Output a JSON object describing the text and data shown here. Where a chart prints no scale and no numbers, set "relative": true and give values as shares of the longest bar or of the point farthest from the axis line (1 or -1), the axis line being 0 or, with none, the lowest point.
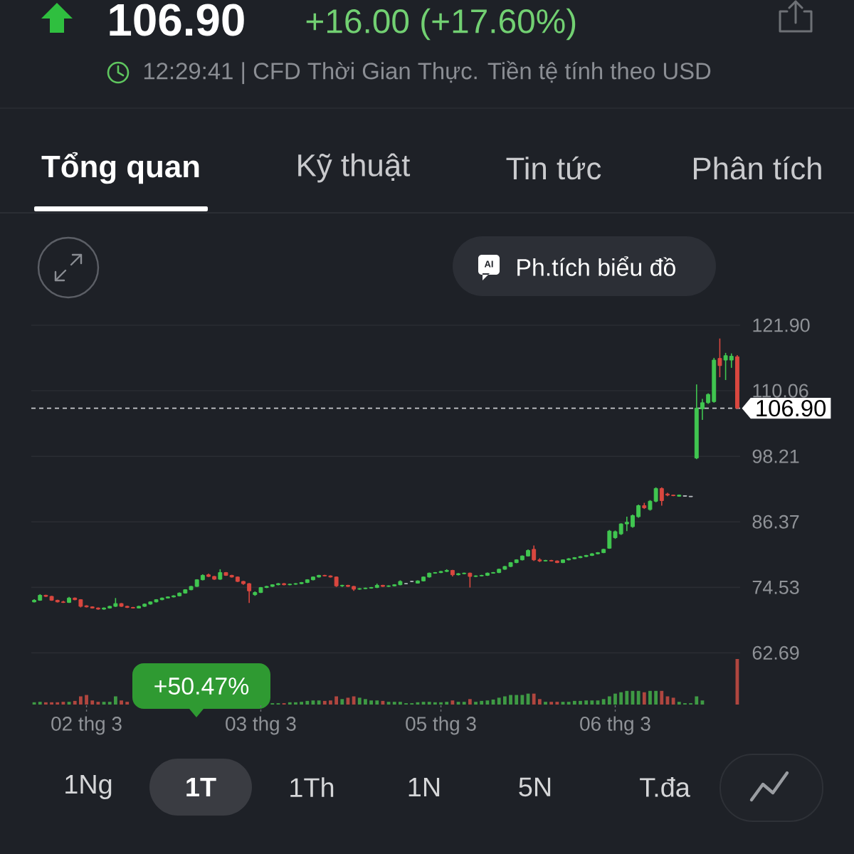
{
  "chart_data": [
    {
      "type": "other",
      "title": "106.90",
      "subtitle": "+16.00 (+17.60%)",
      "annotations": [
        "12:29:41 | CFD Thời Gian Thực. Tiền tệ tính theo USD",
        "Tổng quan",
        "Kỹ thuật",
        "Tin tức",
        "Phân tích",
        "AI",
        "Ph.tích biểu đồ",
        "+50.47%",
        "1Ng",
        "1T",
        "1Th",
        "1N",
        "5N",
        "T.đa"
      ]
    },
    {
      "type": "candlestick",
      "categories": [
        null,
        null,
        null,
        null,
        null,
        null,
        null,
        null,
        null,
        null,
        null,
        null,
        null,
        null,
        null,
        null,
        null,
        null,
        null,
        null,
        null,
        null,
        null,
        null,
        null,
        null,
        null,
        null,
        null,
        null,
        null,
        null,
        null,
        null,
        null,
        null,
        null,
        null,
        null,
        null,
        null,
        null,
        null,
        null,
        null,
        null,
        null,
        null,
        null,
        null,
        null,
        null,
        null,
        null,
        null,
        null,
        null,
        null,
        null,
        null,
        null,
        null,
        null,
        null,
        null,
        null,
        null,
        null,
        null,
        null,
        null,
        null,
        null,
        null,
        null,
        null,
        null,
        null,
        null,
        null,
        null,
        null,
        null,
        null,
        null,
        null,
        null,
        null,
        null,
        null,
        null,
        null,
        null,
        null,
        null,
        null,
        null,
        null,
        null,
        null,
        null,
        null,
        null,
        null,
        null,
        null,
        null,
        null,
        null,
        null,
        null,
        null,
        null,
        null,
        null,
        null,
        null,
        null,
        null,
        null,
        null,
        null
      ],
      "ohlc": [
        [
          71.9,
          72.4,
          71.8,
          72.2
        ],
        [
          72.2,
          73.3,
          72.1,
          73.1
        ],
        [
          73.1,
          73.2,
          72.8,
          72.9
        ],
        [
          72.9,
          73.0,
          72.1,
          72.2
        ],
        [
          72.2,
          72.3,
          71.8,
          71.9
        ],
        [
          71.9,
          72.1,
          71.7,
          71.8
        ],
        [
          71.8,
          72.8,
          71.7,
          72.6
        ],
        [
          72.6,
          72.7,
          72.2,
          72.3
        ],
        [
          72.3,
          72.4,
          70.9,
          71.1
        ],
        [
          71.2,
          71.3,
          70.9,
          71.0
        ],
        [
          71.0,
          71.1,
          70.7,
          70.8
        ],
        [
          70.8,
          70.9,
          70.5,
          70.6
        ],
        [
          70.6,
          70.9,
          70.5,
          70.8
        ],
        [
          70.8,
          71.2,
          70.7,
          71.1
        ],
        [
          71.1,
          72.6,
          71.0,
          71.6
        ],
        [
          71.6,
          71.7,
          71.0,
          71.1
        ],
        [
          71.1,
          71.2,
          70.8,
          70.9
        ],
        [
          70.9,
          71.0,
          70.7,
          70.8
        ],
        [
          70.8,
          71.2,
          70.7,
          71.1
        ],
        [
          71.1,
          71.6,
          71.0,
          71.5
        ],
        [
          71.5,
          72.0,
          71.4,
          71.9
        ],
        [
          71.9,
          72.4,
          71.8,
          72.3
        ],
        [
          72.3,
          72.7,
          72.2,
          72.6
        ],
        [
          72.6,
          72.9,
          72.5,
          72.8
        ],
        [
          72.8,
          73.1,
          72.7,
          73.0
        ],
        [
          73.0,
          73.6,
          72.9,
          73.5
        ],
        [
          73.5,
          74.2,
          73.4,
          74.1
        ],
        [
          74.1,
          74.8,
          74.0,
          74.7
        ],
        [
          74.7,
          76.0,
          74.6,
          75.9
        ],
        [
          75.9,
          76.9,
          75.8,
          76.7
        ],
        [
          76.8,
          77.0,
          76.4,
          76.5
        ],
        [
          76.5,
          76.6,
          75.9,
          76.0
        ],
        [
          76.0,
          77.8,
          75.9,
          77.2
        ],
        [
          77.2,
          77.3,
          76.6,
          76.7
        ],
        [
          76.7,
          76.8,
          76.3,
          76.4
        ],
        [
          76.4,
          76.5,
          75.5,
          75.6
        ],
        [
          75.6,
          75.7,
          75.0,
          75.2
        ],
        [
          75.2,
          75.3,
          71.7,
          73.9
        ],
        [
          73.2,
          73.8,
          73.0,
          73.6
        ],
        [
          73.6,
          74.6,
          73.5,
          74.5
        ],
        [
          74.5,
          74.8,
          74.4,
          74.7
        ],
        [
          74.7,
          75.1,
          74.6,
          75.0
        ],
        [
          75.0,
          75.3,
          74.9,
          75.2
        ],
        [
          75.2,
          75.3,
          74.9,
          75.0
        ],
        [
          75.0,
          75.2,
          74.9,
          75.1
        ],
        [
          75.1,
          75.3,
          75.0,
          75.2
        ],
        [
          75.2,
          75.5,
          75.1,
          75.4
        ],
        [
          75.4,
          76.0,
          75.3,
          75.9
        ],
        [
          75.9,
          76.5,
          75.8,
          76.4
        ],
        [
          76.4,
          76.8,
          76.3,
          76.7
        ],
        [
          76.7,
          76.8,
          76.5,
          76.6
        ],
        [
          76.6,
          76.7,
          76.3,
          76.4
        ],
        [
          76.4,
          76.5,
          74.6,
          74.8
        ],
        [
          74.8,
          75.0,
          74.6,
          74.9
        ],
        [
          74.9,
          75.0,
          74.6,
          74.7
        ],
        [
          74.7,
          74.8,
          73.9,
          74.2
        ],
        [
          74.2,
          74.4,
          74.1,
          74.3
        ],
        [
          74.3,
          74.5,
          74.2,
          74.4
        ],
        [
          74.4,
          74.6,
          74.3,
          74.5
        ],
        [
          74.5,
          75.2,
          74.4,
          74.9
        ],
        [
          74.9,
          75.0,
          74.6,
          74.7
        ],
        [
          74.7,
          74.9,
          74.6,
          74.8
        ],
        [
          74.8,
          75.1,
          74.7,
          75.0
        ],
        [
          75.0,
          75.8,
          74.9,
          75.6
        ],
        [
          75.2,
          75.3,
          75.1,
          75.2
        ],
        [
          75.6,
          75.7,
          75.5,
          75.6
        ],
        [
          75.3,
          75.8,
          75.2,
          75.7
        ],
        [
          75.7,
          76.5,
          75.6,
          76.4
        ],
        [
          76.4,
          77.2,
          76.3,
          77.1
        ],
        [
          77.1,
          77.3,
          77.0,
          77.2
        ],
        [
          77.2,
          77.5,
          77.1,
          77.4
        ],
        [
          77.4,
          77.8,
          77.3,
          77.6
        ],
        [
          77.6,
          77.7,
          76.5,
          76.8
        ],
        [
          76.8,
          77.1,
          76.7,
          77.0
        ],
        [
          77.0,
          77.2,
          76.9,
          77.1
        ],
        [
          77.1,
          77.2,
          74.5,
          76.5
        ],
        [
          76.5,
          76.7,
          76.4,
          76.6
        ],
        [
          76.6,
          76.8,
          76.5,
          76.7
        ],
        [
          76.7,
          77.2,
          76.6,
          77.1
        ],
        [
          77.1,
          77.3,
          77.0,
          77.2
        ],
        [
          77.2,
          77.9,
          77.1,
          77.8
        ],
        [
          77.8,
          78.4,
          77.7,
          78.3
        ],
        [
          78.3,
          79.1,
          78.2,
          79.0
        ],
        [
          79.0,
          79.6,
          78.9,
          79.5
        ],
        [
          79.5,
          80.3,
          79.4,
          80.2
        ],
        [
          80.2,
          81.4,
          80.1,
          81.2
        ],
        [
          81.4,
          82.1,
          79.3,
          79.5
        ],
        [
          79.5,
          79.8,
          79.1,
          79.3
        ],
        [
          79.3,
          79.5,
          79.2,
          79.4
        ],
        [
          79.4,
          79.5,
          79.2,
          79.3
        ],
        [
          79.3,
          79.4,
          78.9,
          79.0
        ],
        [
          79.0,
          79.6,
          78.9,
          79.5
        ],
        [
          79.5,
          79.8,
          79.4,
          79.7
        ],
        [
          79.7,
          80.0,
          79.6,
          79.9
        ],
        [
          79.9,
          80.2,
          79.8,
          80.1
        ],
        [
          80.1,
          80.4,
          80.0,
          80.3
        ],
        [
          80.3,
          80.7,
          80.2,
          80.6
        ],
        [
          80.6,
          80.9,
          80.5,
          80.8
        ],
        [
          80.8,
          81.5,
          80.7,
          81.4
        ],
        [
          81.6,
          84.9,
          81.5,
          84.7
        ],
        [
          83.5,
          84.8,
          83.3,
          84.6
        ],
        [
          84.2,
          86.1,
          84.0,
          86.0
        ],
        [
          86.0,
          87.3,
          84.7,
          86.3
        ],
        [
          85.5,
          87.7,
          85.3,
          87.5
        ],
        [
          87.3,
          89.5,
          87.1,
          89.3
        ],
        [
          89.3,
          89.8,
          88.7,
          88.9
        ],
        [
          88.6,
          90.3,
          88.4,
          90.1
        ],
        [
          90.1,
          92.6,
          89.9,
          92.4
        ],
        [
          92.4,
          92.6,
          89.3,
          90.2
        ],
        [
          91.4,
          91.6,
          91.0,
          91.2
        ],
        [
          91.2,
          91.3,
          91.0,
          91.1
        ],
        [
          91.0,
          91.3,
          90.9,
          91.2
        ],
        [
          91.1,
          91.1,
          91.0,
          91.0
        ],
        [
          91.0,
          91.0,
          90.9,
          90.9
        ],
        [
          97.9,
          111.2,
          97.7,
          106.9
        ],
        [
          106.8,
          108.6,
          104.8,
          107.9
        ],
        [
          107.9,
          109.6,
          107.7,
          109.4
        ],
        [
          108.1,
          116.0,
          107.9,
          115.6
        ],
        [
          115.9,
          119.5,
          112.5,
          114.6
        ],
        [
          115.6,
          116.9,
          112.0,
          116.4
        ],
        [
          115.6,
          116.8,
          114.2,
          116.3
        ],
        [
          116.2,
          116.5,
          106.9,
          106.9
        ]
      ],
      "colors": [
        "#40c650",
        "#40c650",
        "#d9473f",
        "#d9473f",
        "#d9473f",
        "#d9473f",
        "#40c650",
        "#d9473f",
        "#d9473f",
        "#d9473f",
        "#d9473f",
        "#d9473f",
        "#40c650",
        "#40c650",
        "#40c650",
        "#d9473f",
        "#d9473f",
        "#d9473f",
        "#40c650",
        "#40c650",
        "#40c650",
        "#40c650",
        "#40c650",
        "#40c650",
        "#40c650",
        "#40c650",
        "#40c650",
        "#40c650",
        "#40c650",
        "#40c650",
        "#d9473f",
        "#d9473f",
        "#40c650",
        "#d9473f",
        "#d9473f",
        "#d9473f",
        "#d9473f",
        "#d9473f",
        "#40c650",
        "#40c650",
        "#40c650",
        "#40c650",
        "#40c650",
        "#d9473f",
        "#40c650",
        "#40c650",
        "#40c650",
        "#40c650",
        "#40c650",
        "#40c650",
        "#d9473f",
        "#d9473f",
        "#d9473f",
        "#40c650",
        "#d9473f",
        "#d9473f",
        "#40c650",
        "#40c650",
        "#40c650",
        "#40c650",
        "#d9473f",
        "#40c650",
        "#40c650",
        "#40c650",
        "#b9bdc2",
        "#b9bdc2",
        "#40c650",
        "#40c650",
        "#40c650",
        "#40c650",
        "#40c650",
        "#40c650",
        "#d9473f",
        "#40c650",
        "#40c650",
        "#d9473f",
        "#40c650",
        "#40c650",
        "#40c650",
        "#40c650",
        "#40c650",
        "#40c650",
        "#40c650",
        "#40c650",
        "#40c650",
        "#40c650",
        "#d9473f",
        "#d9473f",
        "#40c650",
        "#d9473f",
        "#d9473f",
        "#40c650",
        "#40c650",
        "#40c650",
        "#40c650",
        "#40c650",
        "#40c650",
        "#40c650",
        "#40c650",
        "#40c650",
        "#40c650",
        "#40c650",
        "#40c650",
        "#40c650",
        "#40c650",
        "#d9473f",
        "#40c650",
        "#40c650",
        "#d9473f",
        "#d9473f",
        "#d9473f",
        "#40c650",
        "#b9bdc2",
        "#b9bdc2",
        "#40c650",
        "#40c650",
        "#40c650",
        "#40c650",
        "#d9473f",
        "#40c650",
        "#40c650",
        "#d9473f"
      ],
      "ylim": [
        62.69,
        121.9
      ],
      "yticks": [
        62.69,
        74.53,
        86.37,
        98.21,
        110.06,
        {
          "value": 121.9,
          "label": "121.90"
        }
      ],
      "grid": "y",
      "ref_lines": [
        {
          "axis": "y",
          "value": 106.9,
          "label": "106.90",
          "color": "#c8cacd",
          "line_style": "dashed"
        }
      ],
      "tick_labels": "y"
    },
    {
      "type": "bar",
      "categories": [
        null,
        null,
        null,
        null,
        null,
        null,
        null,
        null,
        null,
        "02 thg 3",
        null,
        null,
        null,
        null,
        null,
        null,
        null,
        null,
        null,
        null,
        null,
        null,
        null,
        null,
        null,
        null,
        null,
        null,
        null,
        null,
        null,
        null,
        null,
        null,
        null,
        null,
        null,
        null,
        null,
        "03 thg 3",
        null,
        null,
        null,
        null,
        null,
        null,
        null,
        null,
        null,
        null,
        null,
        null,
        null,
        null,
        null,
        null,
        null,
        null,
        null,
        null,
        null,
        null,
        null,
        null,
        null,
        null,
        null,
        null,
        null,
        null,
        "05 thg 3",
        null,
        null,
        null,
        null,
        null,
        null,
        null,
        null,
        null,
        null,
        null,
        null,
        null,
        null,
        null,
        null,
        null,
        null,
        null,
        null,
        null,
        null,
        null,
        null,
        null,
        null,
        null,
        null,
        null,
        "06 thg 3",
        null,
        null,
        null,
        null,
        null,
        null,
        null,
        null,
        null,
        null,
        null,
        null,
        null,
        null,
        null,
        null,
        null,
        null,
        null,
        null,
        null
      ],
      "values": [
        0.05,
        0.06,
        0.05,
        0.05,
        0.05,
        0.06,
        0.06,
        0.08,
        0.18,
        0.21,
        0.09,
        0.06,
        0.06,
        0.06,
        0.18,
        0.09,
        0.06,
        null,
        null,
        null,
        null,
        null,
        null,
        null,
        null,
        null,
        null,
        null,
        null,
        null,
        null,
        null,
        null,
        null,
        null,
        null,
        null,
        null,
        null,
        null,
        null,
        0.03,
        0.03,
        0.03,
        0.05,
        0.05,
        0.06,
        0.08,
        0.09,
        0.09,
        0.08,
        0.09,
        0.18,
        0.12,
        0.15,
        0.18,
        0.15,
        0.12,
        0.09,
        0.09,
        0.08,
        0.06,
        0.06,
        0.06,
        0.03,
        0.03,
        0.05,
        0.06,
        0.06,
        0.05,
        0.05,
        0.06,
        0.09,
        0.06,
        0.06,
        0.12,
        0.06,
        0.08,
        0.09,
        0.11,
        0.15,
        0.18,
        0.21,
        0.21,
        0.21,
        0.24,
        0.24,
        0.12,
        0.06,
        0.06,
        0.06,
        0.06,
        0.06,
        0.08,
        0.08,
        0.09,
        0.09,
        0.09,
        0.12,
        0.18,
        0.24,
        0.27,
        0.3,
        0.3,
        0.3,
        0.27,
        0.3,
        0.3,
        0.3,
        0.18,
        0.15,
        0.06,
        0.03,
        0.03,
        0.18,
        0.09,
        null,
        null,
        null,
        null,
        null,
        1
      ],
      "colors": [
        "#3e9a44",
        "#3e9a44",
        "#b0463f",
        "#b0463f",
        "#b0463f",
        "#b0463f",
        "#3e9a44",
        "#b0463f",
        "#b0463f",
        "#b0463f",
        "#b0463f",
        "#b0463f",
        "#3e9a44",
        "#3e9a44",
        "#3e9a44",
        "#b0463f",
        "#b0463f",
        null,
        null,
        null,
        null,
        null,
        null,
        null,
        null,
        null,
        null,
        null,
        null,
        null,
        null,
        null,
        null,
        null,
        null,
        null,
        null,
        null,
        null,
        null,
        null,
        "#3e9a44",
        "#3e9a44",
        "#b0463f",
        "#3e9a44",
        "#3e9a44",
        "#3e9a44",
        "#3e9a44",
        "#3e9a44",
        "#3e9a44",
        "#b0463f",
        "#b0463f",
        "#b0463f",
        "#3e9a44",
        "#b0463f",
        "#b0463f",
        "#3e9a44",
        "#3e9a44",
        "#3e9a44",
        "#3e9a44",
        "#b0463f",
        "#3e9a44",
        "#3e9a44",
        "#3e9a44",
        "#3e9a44",
        "#3e9a44",
        "#3e9a44",
        "#3e9a44",
        "#3e9a44",
        "#3e9a44",
        "#3e9a44",
        "#3e9a44",
        "#b0463f",
        "#3e9a44",
        "#3e9a44",
        "#b0463f",
        "#3e9a44",
        "#3e9a44",
        "#3e9a44",
        "#3e9a44",
        "#3e9a44",
        "#3e9a44",
        "#3e9a44",
        "#3e9a44",
        "#3e9a44",
        "#3e9a44",
        "#b0463f",
        "#b0463f",
        "#3e9a44",
        "#b0463f",
        "#b0463f",
        "#3e9a44",
        "#3e9a44",
        "#3e9a44",
        "#3e9a44",
        "#3e9a44",
        "#3e9a44",
        "#3e9a44",
        "#3e9a44",
        "#3e9a44",
        "#3e9a44",
        "#3e9a44",
        "#3e9a44",
        "#3e9a44",
        "#3e9a44",
        "#b0463f",
        "#3e9a44",
        "#3e9a44",
        "#b0463f",
        "#b0463f",
        "#b0463f",
        "#3e9a44",
        "#3e9a44",
        "#3e9a44",
        "#3e9a44",
        "#3e9a44",
        null,
        null,
        null,
        null,
        null,
        "#b0463f"
      ],
      "relative": true,
      "tick_labels": "x"
    }
  ]
}
